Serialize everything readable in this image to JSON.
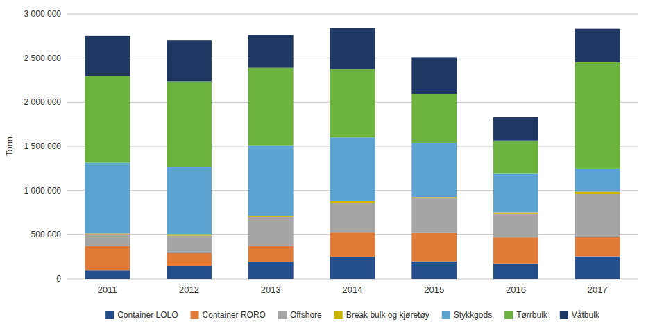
{
  "chart_data": {
    "type": "bar",
    "stacked": true,
    "categories": [
      "2011",
      "2012",
      "2013",
      "2014",
      "2015",
      "2016",
      "2017"
    ],
    "series": [
      {
        "name": "Container LOLO",
        "color": "#254E8C",
        "values": [
          100000,
          150000,
          195000,
          250000,
          200000,
          175000,
          255000
        ]
      },
      {
        "name": "Container RORO",
        "color": "#E07B39",
        "values": [
          270000,
          145000,
          175000,
          275000,
          320000,
          295000,
          220000
        ]
      },
      {
        "name": "Offshore",
        "color": "#A6A6A6",
        "values": [
          130000,
          195000,
          330000,
          340000,
          390000,
          270000,
          490000
        ]
      },
      {
        "name": "Break bulk og kjøretøy",
        "color": "#C9B400",
        "values": [
          15000,
          10000,
          10000,
          15000,
          15000,
          10000,
          20000
        ]
      },
      {
        "name": "Stykkgods",
        "color": "#5BA3D0",
        "values": [
          800000,
          765000,
          800000,
          720000,
          615000,
          440000,
          265000
        ]
      },
      {
        "name": "Tørrbulk",
        "color": "#6CB33E",
        "values": [
          980000,
          970000,
          880000,
          775000,
          555000,
          375000,
          1200000
        ]
      },
      {
        "name": "Våtbulk",
        "color": "#1F3864",
        "values": [
          455000,
          465000,
          370000,
          465000,
          415000,
          265000,
          380000
        ]
      }
    ],
    "ylabel": "Tonn",
    "ylim": [
      0,
      3000000
    ],
    "yticks": [
      0,
      {
        "value": 500000,
        "label": "500 000"
      },
      {
        "value": 1000000,
        "label": "1 000 000"
      },
      {
        "value": 1500000,
        "label": "1 500 000"
      },
      {
        "value": 2000000,
        "label": "2 000 000"
      },
      {
        "value": 2500000,
        "label": "2 500 000"
      },
      {
        "value": 3000000,
        "label": "3 000 000"
      }
    ],
    "grid": true,
    "legend": "bottom"
  }
}
